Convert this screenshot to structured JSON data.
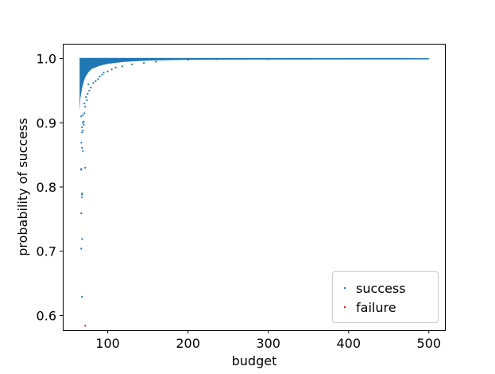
{
  "chart_data": {
    "type": "scatter",
    "title": "",
    "xlabel": "budget",
    "ylabel": "probability of success",
    "xlim": [
      45,
      520
    ],
    "ylim": [
      0.577,
      1.023
    ],
    "xticks": [
      100,
      200,
      300,
      400,
      500
    ],
    "yticks": [
      0.6,
      0.7,
      0.8,
      0.9,
      1.0
    ],
    "xtick_labels": [
      "100",
      "200",
      "300",
      "400",
      "500"
    ],
    "ytick_labels": [
      "0.6",
      "0.7",
      "0.8",
      "0.9",
      "1.0"
    ],
    "legend": {
      "placement": "lower-right",
      "entries": [
        "success",
        "failure"
      ]
    },
    "colors": {
      "success": "#1f77b4",
      "failure": "#ff0000"
    },
    "dense_band": {
      "series": "success",
      "lower_envelope": [
        [
          65,
          0.92
        ],
        [
          66,
          0.94
        ],
        [
          68,
          0.955
        ],
        [
          70,
          0.965
        ],
        [
          72,
          0.972
        ],
        [
          76,
          0.98
        ],
        [
          80,
          0.985
        ],
        [
          90,
          0.99
        ],
        [
          100,
          0.993
        ],
        [
          120,
          0.996
        ],
        [
          150,
          0.998
        ],
        [
          200,
          0.9993
        ],
        [
          250,
          0.9996
        ],
        [
          350,
          0.9998
        ],
        [
          500,
          0.9999
        ]
      ],
      "upper": 1.0
    },
    "series": [
      {
        "name": "success",
        "points": [
          [
            68,
            0.629
          ],
          [
            67,
            0.704
          ],
          [
            68,
            0.719
          ],
          [
            67,
            0.759
          ],
          [
            68,
            0.784
          ],
          [
            68,
            0.788
          ],
          [
            68,
            0.79
          ],
          [
            67,
            0.827
          ],
          [
            67,
            0.828
          ],
          [
            72,
            0.83
          ],
          [
            67,
            0.869
          ],
          [
            68,
            0.861
          ],
          [
            69,
            0.856
          ],
          [
            68,
            0.885
          ],
          [
            69,
            0.888
          ],
          [
            68,
            0.893
          ],
          [
            70,
            0.897
          ],
          [
            69,
            0.9
          ],
          [
            70,
            0.902
          ],
          [
            67,
            0.91
          ],
          [
            69,
            0.912
          ],
          [
            71,
            0.915
          ],
          [
            72,
            0.925
          ],
          [
            71,
            0.93
          ],
          [
            74,
            0.935
          ],
          [
            73,
            0.94
          ],
          [
            75,
            0.945
          ],
          [
            77,
            0.95
          ],
          [
            79,
            0.955
          ],
          [
            76,
            0.96
          ],
          [
            82,
            0.962
          ],
          [
            85,
            0.965
          ],
          [
            88,
            0.968
          ],
          [
            90,
            0.972
          ],
          [
            93,
            0.975
          ],
          [
            95,
            0.978
          ],
          [
            100,
            0.98
          ],
          [
            105,
            0.983
          ],
          [
            110,
            0.986
          ],
          [
            118,
            0.988
          ],
          [
            130,
            0.991
          ],
          [
            145,
            0.993
          ],
          [
            160,
            0.995
          ],
          [
            200,
            0.998
          ],
          [
            235,
            0.999
          ],
          [
            300,
            0.9992
          ]
        ]
      },
      {
        "name": "failure",
        "points": [
          [
            72,
            0.584
          ]
        ]
      }
    ]
  }
}
